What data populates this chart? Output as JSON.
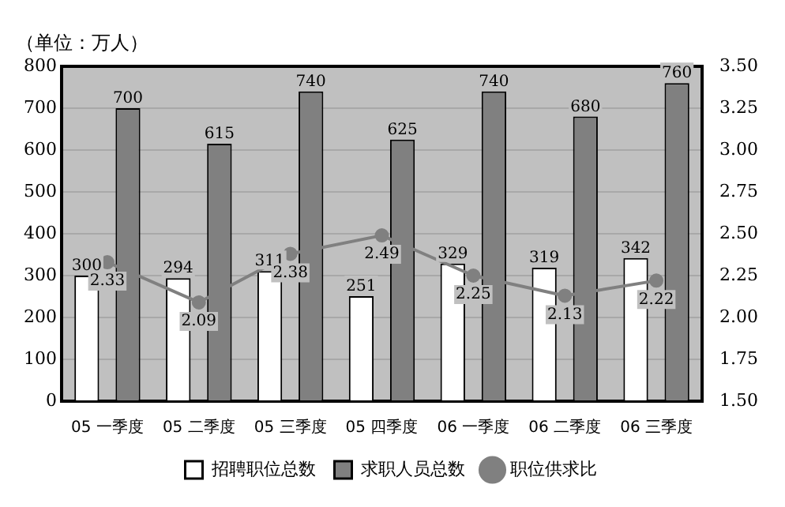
{
  "chart_data": {
    "type": "bar",
    "ylabel": "（单位：万人）",
    "categories": [
      "05 一季度",
      "05 二季度",
      "05 三季度",
      "05 四季度",
      "06 一季度",
      "06 二季度",
      "06 三季度"
    ],
    "series": [
      {
        "name": "招聘职位总数",
        "color": "#ffffff",
        "values": [
          300,
          294,
          311,
          251,
          329,
          319,
          342
        ]
      },
      {
        "name": "求职人员总数",
        "color": "#808080",
        "values": [
          700,
          615,
          740,
          625,
          740,
          680,
          760
        ]
      },
      {
        "name": "职位供求比",
        "type": "line",
        "axis": "y2",
        "color": "#808080",
        "marker": "circle",
        "values": [
          2.33,
          2.09,
          2.38,
          2.49,
          2.25,
          2.13,
          2.22
        ]
      }
    ],
    "ylim": [
      0,
      800
    ],
    "yticks": [
      0,
      100,
      200,
      300,
      400,
      500,
      600,
      700,
      800
    ],
    "y2lim": [
      1.5,
      3.5
    ],
    "y2ticks": [
      {
        "value": 1.5,
        "label": "1.50"
      },
      {
        "value": 1.75,
        "label": "1.75"
      },
      {
        "value": 2,
        "label": "2.00"
      },
      {
        "value": 2.25,
        "label": "2.25"
      },
      {
        "value": 2.5,
        "label": "2.50"
      },
      {
        "value": 2.75,
        "label": "2.75"
      },
      {
        "value": 3,
        "label": "3.00"
      },
      {
        "value": 3.25,
        "label": "3.25"
      },
      {
        "value": 3.5,
        "label": "3.50"
      }
    ],
    "grid": "y",
    "legend": "bottom",
    "data_labels": true
  }
}
